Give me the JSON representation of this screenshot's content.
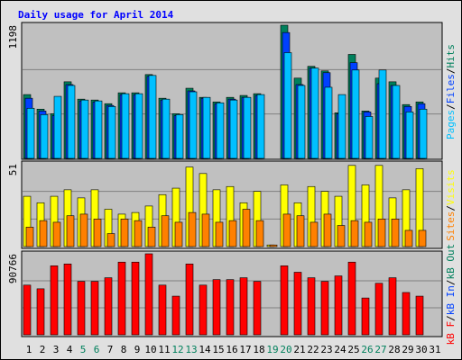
{
  "chart_data": [
    {
      "type": "bar",
      "title": "Daily usage for April 2014",
      "legend_separator": "/",
      "ylim": [
        0,
        1198
      ],
      "yticks": [
        1198
      ],
      "grid_divisions": 3,
      "series": [
        {
          "name": "Hits",
          "color": "#00805c",
          "values": [
            574,
            443,
            402,
            689,
            533,
            525,
            492,
            590,
            590,
            754,
            541,
            402,
            631,
            549,
            508,
            549,
            566,
            582,
            0,
            1198,
            722,
            828,
            787,
            410,
            935,
            426,
            722,
            689,
            484,
            508,
            null
          ]
        },
        {
          "name": "Files",
          "color": "#0040ff",
          "values": [
            541,
            426,
            385,
            664,
            517,
            508,
            476,
            574,
            574,
            738,
            525,
            385,
            607,
            541,
            492,
            533,
            549,
            566,
            0,
            1132,
            664,
            812,
            771,
            402,
            861,
            418,
            672,
            656,
            467,
            492,
            null
          ]
        },
        {
          "name": "Pages",
          "color": "#00c0ff",
          "values": [
            451,
            394,
            558,
            656,
            525,
            517,
            467,
            582,
            582,
            746,
            533,
            394,
            599,
            549,
            500,
            525,
            549,
            574,
            0,
            951,
            656,
            812,
            640,
            574,
            795,
            377,
            795,
            656,
            418,
            443,
            null
          ]
        }
      ]
    },
    {
      "type": "bar",
      "ylim": [
        0,
        51
      ],
      "yticks": [
        51
      ],
      "grid_divisions": 3,
      "series": [
        {
          "name": "Visits",
          "color": "#ffff00",
          "values": [
            31,
            27,
            31,
            35,
            30,
            35,
            23,
            20,
            21,
            25,
            32,
            36,
            49,
            45,
            35,
            37,
            27,
            34,
            1,
            38,
            27,
            37,
            34,
            31,
            50,
            38,
            50,
            30,
            35,
            48,
            null
          ]
        },
        {
          "name": "Sites",
          "color": "#ff8000",
          "values": [
            12,
            16,
            15,
            19,
            20,
            17,
            8,
            17,
            16,
            12,
            19,
            15,
            21,
            20,
            15,
            16,
            23,
            16,
            1,
            20,
            19,
            15,
            20,
            13,
            16,
            15,
            17,
            17,
            10,
            10,
            null
          ]
        }
      ]
    },
    {
      "type": "bar",
      "ylim": [
        0,
        90766
      ],
      "yticks": [
        90766
      ],
      "grid_divisions": 3,
      "categories": [
        "1",
        "2",
        "3",
        "4",
        "5",
        "6",
        "7",
        "8",
        "9",
        "10",
        "11",
        "12",
        "13",
        "14",
        "15",
        "16",
        "17",
        "18",
        "19",
        "20",
        "21",
        "22",
        "23",
        "24",
        "25",
        "26",
        "27",
        "28",
        "29",
        "30",
        "31"
      ],
      "category_colors": [
        "#000000",
        "#000000",
        "#000000",
        "#000000",
        "#00805c",
        "#00805c",
        "#000000",
        "#000000",
        "#000000",
        "#000000",
        "#000000",
        "#00805c",
        "#00805c",
        "#000000",
        "#000000",
        "#000000",
        "#000000",
        "#000000",
        "#00805c",
        "#00805c",
        "#000000",
        "#000000",
        "#000000",
        "#000000",
        "#000000",
        "#00805c",
        "#00805c",
        "#000000",
        "#000000",
        "#000000",
        "#000000"
      ],
      "series": [
        {
          "name": "kB Out",
          "color": "#00805c",
          "values": [
            null,
            null,
            null,
            null,
            null,
            null,
            null,
            null,
            null,
            null,
            null,
            null,
            null,
            null,
            null,
            null,
            null,
            null,
            null,
            null,
            null,
            null,
            null,
            null,
            null,
            null,
            null,
            null,
            null,
            null,
            null
          ]
        },
        {
          "name": "kB In",
          "color": "#0040ff",
          "values": [
            null,
            null,
            null,
            null,
            null,
            null,
            null,
            null,
            null,
            null,
            null,
            null,
            null,
            null,
            null,
            null,
            null,
            null,
            null,
            null,
            null,
            null,
            null,
            null,
            null,
            null,
            null,
            null,
            null,
            null,
            null
          ]
        },
        {
          "name": "kB F",
          "color": "#ff0000",
          "values": [
            55674,
            51550,
            77325,
            79387,
            59798,
            59798,
            63922,
            81449,
            81449,
            90766,
            55674,
            43302,
            79387,
            55674,
            61860,
            61860,
            63922,
            59798,
            0,
            77325,
            70108,
            63922,
            59798,
            65984,
            81449,
            41240,
            57736,
            63922,
            47426,
            43302,
            null
          ]
        }
      ]
    }
  ]
}
